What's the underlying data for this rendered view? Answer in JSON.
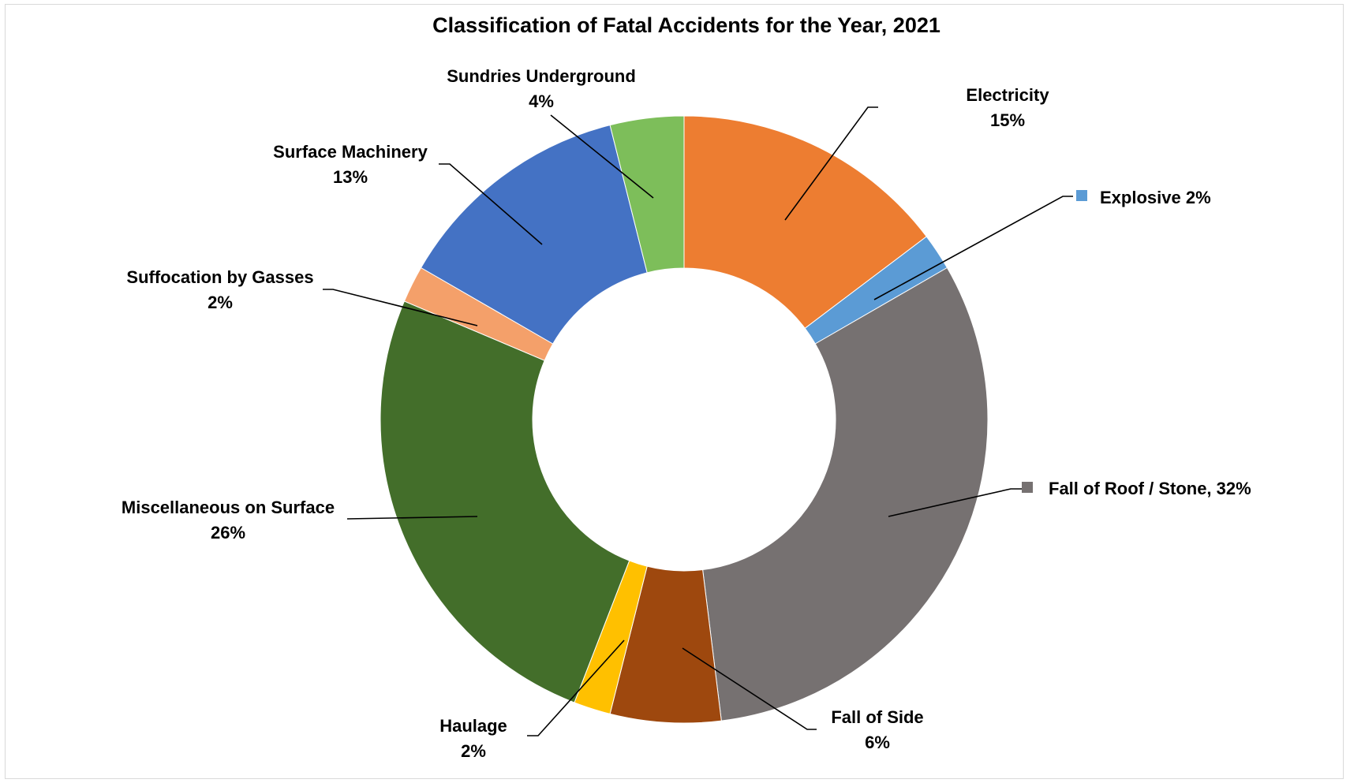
{
  "chart_data": {
    "type": "donut",
    "title": "Classification of Fatal Accidents for the Year, 2021",
    "slices": [
      {
        "name": "Electricity",
        "pct_label": "15%",
        "value": 15,
        "color": "#ED7D31"
      },
      {
        "name": "Explosive",
        "pct_label": "2%",
        "value": 2,
        "color": "#5B9BD5"
      },
      {
        "name": "Fall of Roof / Stone",
        "pct_label": "32%",
        "value": 32,
        "color": "#767171"
      },
      {
        "name": "Fall of Side",
        "pct_label": "6%",
        "value": 6,
        "color": "#9E480E"
      },
      {
        "name": "Haulage",
        "pct_label": "2%",
        "value": 2,
        "color": "#FFC000"
      },
      {
        "name": "Miscellaneous on Surface",
        "pct_label": "26%",
        "value": 26,
        "color": "#436E2A"
      },
      {
        "name": "Suffocation by Gasses",
        "pct_label": "2%",
        "value": 2,
        "color": "#F4A06A"
      },
      {
        "name": "Surface Machinery",
        "pct_label": "13%",
        "value": 13,
        "color": "#4472C4"
      },
      {
        "name": "Sundries Underground",
        "pct_label": "4%",
        "value": 4,
        "color": "#7DBE5A"
      }
    ],
    "labels": {
      "electricity": {
        "line1": "Electricity",
        "line2": "15%"
      },
      "explosive": {
        "line1": "Explosive 2%"
      },
      "fall_roof": {
        "line1": "Fall of Roof / Stone, 32%"
      },
      "fall_side": {
        "line1": "Fall of Side",
        "line2": "6%"
      },
      "haulage": {
        "line1": "Haulage",
        "line2": "2%"
      },
      "misc": {
        "line1": "Miscellaneous on Surface",
        "line2": "26%"
      },
      "suffocation": {
        "line1": "Suffocation by Gasses",
        "line2": "2%"
      },
      "surface_machinery": {
        "line1": "Surface Machinery",
        "line2": "13%"
      },
      "sundries": {
        "line1": "Sundries Underground",
        "line2": "4%"
      }
    }
  }
}
